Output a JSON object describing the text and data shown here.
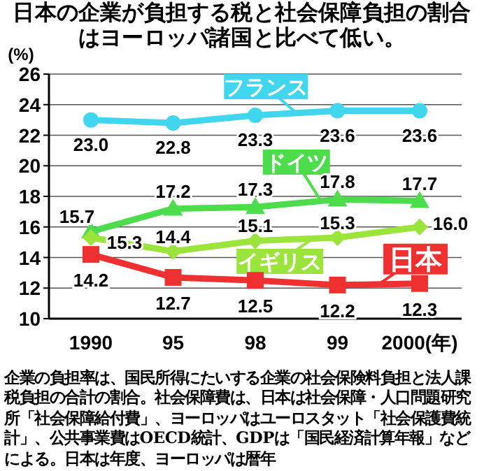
{
  "chart_data": {
    "type": "line",
    "title": "日本の企業が負担する税と社会保障負担の割合はヨーロッパ諸国と比べて低い。",
    "ylabel": "(%)",
    "categories": [
      "1990",
      "95",
      "98",
      "99",
      "2000(年)"
    ],
    "series": [
      {
        "name": "フランス",
        "color": "#3fd6ee",
        "marker": "circle",
        "values": [
          23.0,
          22.8,
          23.3,
          23.6,
          23.6
        ],
        "value_labels": [
          "23.0",
          "22.8",
          "23.3",
          "23.6",
          "23.6"
        ]
      },
      {
        "name": "ドイツ",
        "color": "#4cdc4c",
        "marker": "triangle",
        "values": [
          15.7,
          17.2,
          17.3,
          17.8,
          17.7
        ],
        "value_labels": [
          "15.7",
          "17.2",
          "17.3",
          "17.8",
          "17.7"
        ]
      },
      {
        "name": "イギリス",
        "color": "#9be43c",
        "marker": "diamond",
        "values": [
          15.3,
          14.4,
          15.1,
          15.3,
          16.0
        ],
        "value_labels": [
          "15.3",
          "14.4",
          "15.1",
          "15.3",
          "16.0"
        ]
      },
      {
        "name": "日本",
        "color": "#ee3030",
        "marker": "square",
        "values": [
          14.2,
          12.7,
          12.5,
          12.2,
          12.3
        ],
        "value_labels": [
          "14.2",
          "12.7",
          "12.5",
          "12.2",
          "12.3"
        ]
      }
    ],
    "ylim": [
      10,
      26
    ],
    "yticks": [
      10,
      12,
      14,
      16,
      18,
      20,
      22,
      24,
      26
    ],
    "grid": "y",
    "annotations": [
      "企業の負担率は、国民所得にたいする企業の社会保険料負担と法人課税負担の合計の割合。社会保障費は、日本は社会保障・人口問題研究所「社会保障給付費」、ヨーロッパはユーロスタット「社会保護費統計」、公共事業費はOECD統計、GDPは「国民経済計算年報」などによる。日本は年度、ヨーロッパは暦年"
    ]
  }
}
